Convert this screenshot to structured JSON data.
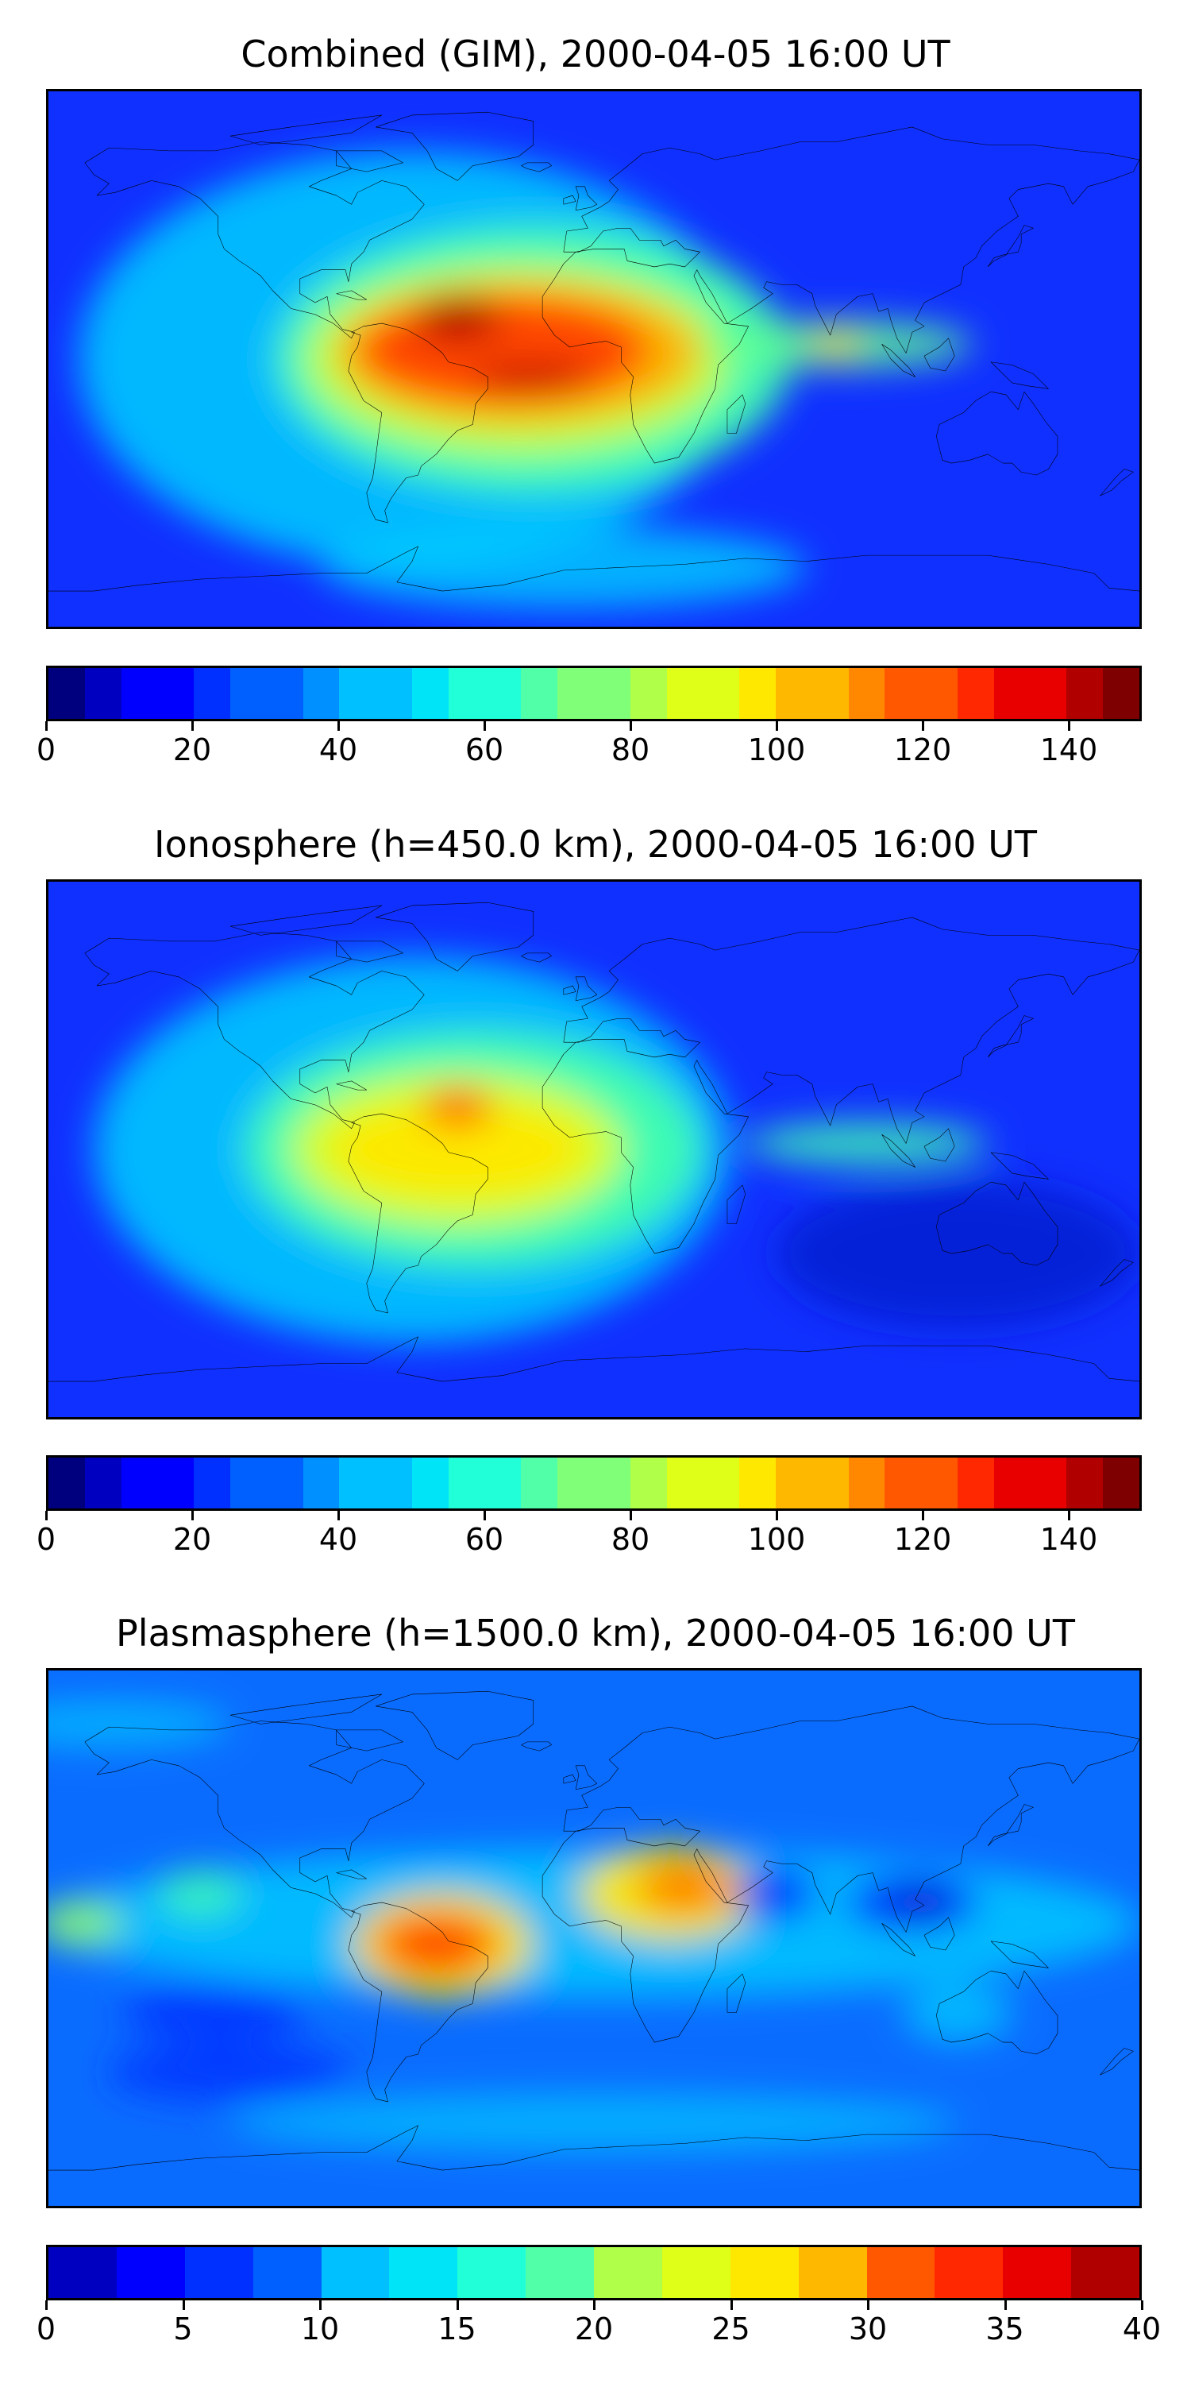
{
  "panels": [
    {
      "title": "Combined (GIM), 2000-04-05 16:00 UT",
      "colorbar": {
        "min": 0,
        "max": 150,
        "levels": 30,
        "ticks": [
          "0",
          "20",
          "40",
          "60",
          "80",
          "100",
          "120",
          "140"
        ],
        "tick_values": [
          0,
          20,
          40,
          60,
          80,
          100,
          120,
          140
        ]
      },
      "background_color": "#1030ff",
      "blobs": [
        {
          "lon": -60,
          "lat": 0,
          "rx_deg": 110,
          "ry_deg": 70,
          "color": "#00bfff",
          "opacity": 0.95
        },
        {
          "lon": -20,
          "lat": 0,
          "rx_deg": 85,
          "ry_deg": 45,
          "color": "#40ffb0",
          "opacity": 0.95
        },
        {
          "lon": -25,
          "lat": 0,
          "rx_deg": 70,
          "ry_deg": 32,
          "color": "#c8ff30",
          "opacity": 0.95
        },
        {
          "lon": -25,
          "lat": 2,
          "rx_deg": 60,
          "ry_deg": 24,
          "color": "#ffb000",
          "opacity": 0.95
        },
        {
          "lon": -30,
          "lat": 3,
          "rx_deg": 48,
          "ry_deg": 18,
          "color": "#ff4000",
          "opacity": 0.95
        },
        {
          "lon": -45,
          "lat": 14,
          "rx_deg": 14,
          "ry_deg": 8,
          "color": "#b00000",
          "opacity": 0.95
        },
        {
          "lon": -20,
          "lat": -6,
          "rx_deg": 20,
          "ry_deg": 5,
          "color": "#c00000",
          "opacity": 0.9
        },
        {
          "lon": 80,
          "lat": 5,
          "rx_deg": 45,
          "ry_deg": 8,
          "color": "#60ff90",
          "opacity": 0.85
        },
        {
          "lon": 80,
          "lat": 5,
          "rx_deg": 8,
          "ry_deg": 4,
          "color": "#ffd000",
          "opacity": 0.9
        },
        {
          "lon": -10,
          "lat": -70,
          "rx_deg": 80,
          "ry_deg": 14,
          "color": "#00d0ff",
          "opacity": 0.8
        }
      ]
    },
    {
      "title": "Ionosphere  (h=450.0 km), 2000-04-05 16:00 UT",
      "colorbar": {
        "min": 0,
        "max": 150,
        "levels": 30,
        "ticks": [
          "0",
          "20",
          "40",
          "60",
          "80",
          "100",
          "120",
          "140"
        ],
        "tick_values": [
          0,
          20,
          40,
          60,
          80,
          100,
          120,
          140
        ]
      },
      "background_color": "#1030ff",
      "blobs": [
        {
          "lon": -60,
          "lat": 0,
          "rx_deg": 105,
          "ry_deg": 65,
          "color": "#00bfff",
          "opacity": 0.95
        },
        {
          "lon": -40,
          "lat": 0,
          "rx_deg": 75,
          "ry_deg": 40,
          "color": "#40ffb0",
          "opacity": 0.95
        },
        {
          "lon": -45,
          "lat": 0,
          "rx_deg": 55,
          "ry_deg": 26,
          "color": "#d8ff20",
          "opacity": 0.95
        },
        {
          "lon": -45,
          "lat": 0,
          "rx_deg": 42,
          "ry_deg": 16,
          "color": "#ffe800",
          "opacity": 0.95
        },
        {
          "lon": -45,
          "lat": 14,
          "rx_deg": 12,
          "ry_deg": 7,
          "color": "#ff8000",
          "opacity": 0.95
        },
        {
          "lon": -45,
          "lat": 14,
          "rx_deg": 6,
          "ry_deg": 4,
          "color": "#ff4000",
          "opacity": 0.95
        },
        {
          "lon": 90,
          "lat": 2,
          "rx_deg": 40,
          "ry_deg": 7,
          "color": "#40ffb0",
          "opacity": 0.85
        },
        {
          "lon": 120,
          "lat": -35,
          "rx_deg": 60,
          "ry_deg": 25,
          "color": "#0818c8",
          "opacity": 0.7
        }
      ]
    },
    {
      "title": "Plasmasphere (h=1500.0 km), 2000-04-05 16:00 UT",
      "colorbar": {
        "min": 0,
        "max": 40,
        "levels": 16,
        "ticks": [
          "0",
          "5",
          "10",
          "15",
          "20",
          "25",
          "30",
          "35",
          "40"
        ],
        "tick_values": [
          0,
          5,
          10,
          15,
          20,
          25,
          30,
          35,
          40
        ]
      },
      "background_color": "#0a6cff",
      "blobs": [
        {
          "lon": 0,
          "lat": 5,
          "rx_deg": 180,
          "ry_deg": 25,
          "color": "#00c8ff",
          "opacity": 0.85
        },
        {
          "lon": -170,
          "lat": 5,
          "rx_deg": 14,
          "ry_deg": 8,
          "color": "#a0ff60",
          "opacity": 0.8
        },
        {
          "lon": -130,
          "lat": 15,
          "rx_deg": 14,
          "ry_deg": 8,
          "color": "#40ffb0",
          "opacity": 0.8
        },
        {
          "lon": -50,
          "lat": -2,
          "rx_deg": 30,
          "ry_deg": 18,
          "color": "#ffe800",
          "opacity": 0.95
        },
        {
          "lon": -52,
          "lat": -2,
          "rx_deg": 22,
          "ry_deg": 12,
          "color": "#ff8000",
          "opacity": 0.95
        },
        {
          "lon": -52,
          "lat": -2,
          "rx_deg": 14,
          "ry_deg": 7,
          "color": "#ff4000",
          "opacity": 0.95
        },
        {
          "lon": 25,
          "lat": 15,
          "rx_deg": 30,
          "ry_deg": 16,
          "color": "#ffe800",
          "opacity": 0.95
        },
        {
          "lon": 30,
          "lat": 17,
          "rx_deg": 16,
          "ry_deg": 9,
          "color": "#ff8000",
          "opacity": 0.95
        },
        {
          "lon": 60,
          "lat": 15,
          "rx_deg": 14,
          "ry_deg": 9,
          "color": "#0030ff",
          "opacity": 0.9
        },
        {
          "lon": 105,
          "lat": 12,
          "rx_deg": 22,
          "ry_deg": 10,
          "color": "#0030ff",
          "opacity": 0.9
        },
        {
          "lon": 108,
          "lat": 12,
          "rx_deg": 10,
          "ry_deg": 5,
          "color": "#0818c8",
          "opacity": 0.9
        },
        {
          "lon": -125,
          "lat": -25,
          "rx_deg": 30,
          "ry_deg": 10,
          "color": "#0030ff",
          "opacity": 0.8
        },
        {
          "lon": -120,
          "lat": -45,
          "rx_deg": 40,
          "ry_deg": 10,
          "color": "#0030ff",
          "opacity": 0.8
        },
        {
          "lon": 0,
          "lat": -62,
          "rx_deg": 120,
          "ry_deg": 10,
          "color": "#00c8ff",
          "opacity": 0.7
        },
        {
          "lon": 120,
          "lat": -25,
          "rx_deg": 18,
          "ry_deg": 10,
          "color": "#00c8ff",
          "opacity": 0.8
        },
        {
          "lon": -160,
          "lat": 72,
          "rx_deg": 40,
          "ry_deg": 8,
          "color": "#00c8ff",
          "opacity": 0.7
        }
      ]
    }
  ],
  "colormap": [
    "#00007f",
    "#0000c0",
    "#0000ff",
    "#0030ff",
    "#0060ff",
    "#0090ff",
    "#00c0ff",
    "#00e4f8",
    "#20ffd8",
    "#50ffa8",
    "#80ff78",
    "#b0ff48",
    "#e0ff18",
    "#ffe800",
    "#ffb800",
    "#ff8800",
    "#ff5800",
    "#ff2800",
    "#e80000",
    "#b00000",
    "#7f0000"
  ],
  "coastline_color": "#000000"
}
